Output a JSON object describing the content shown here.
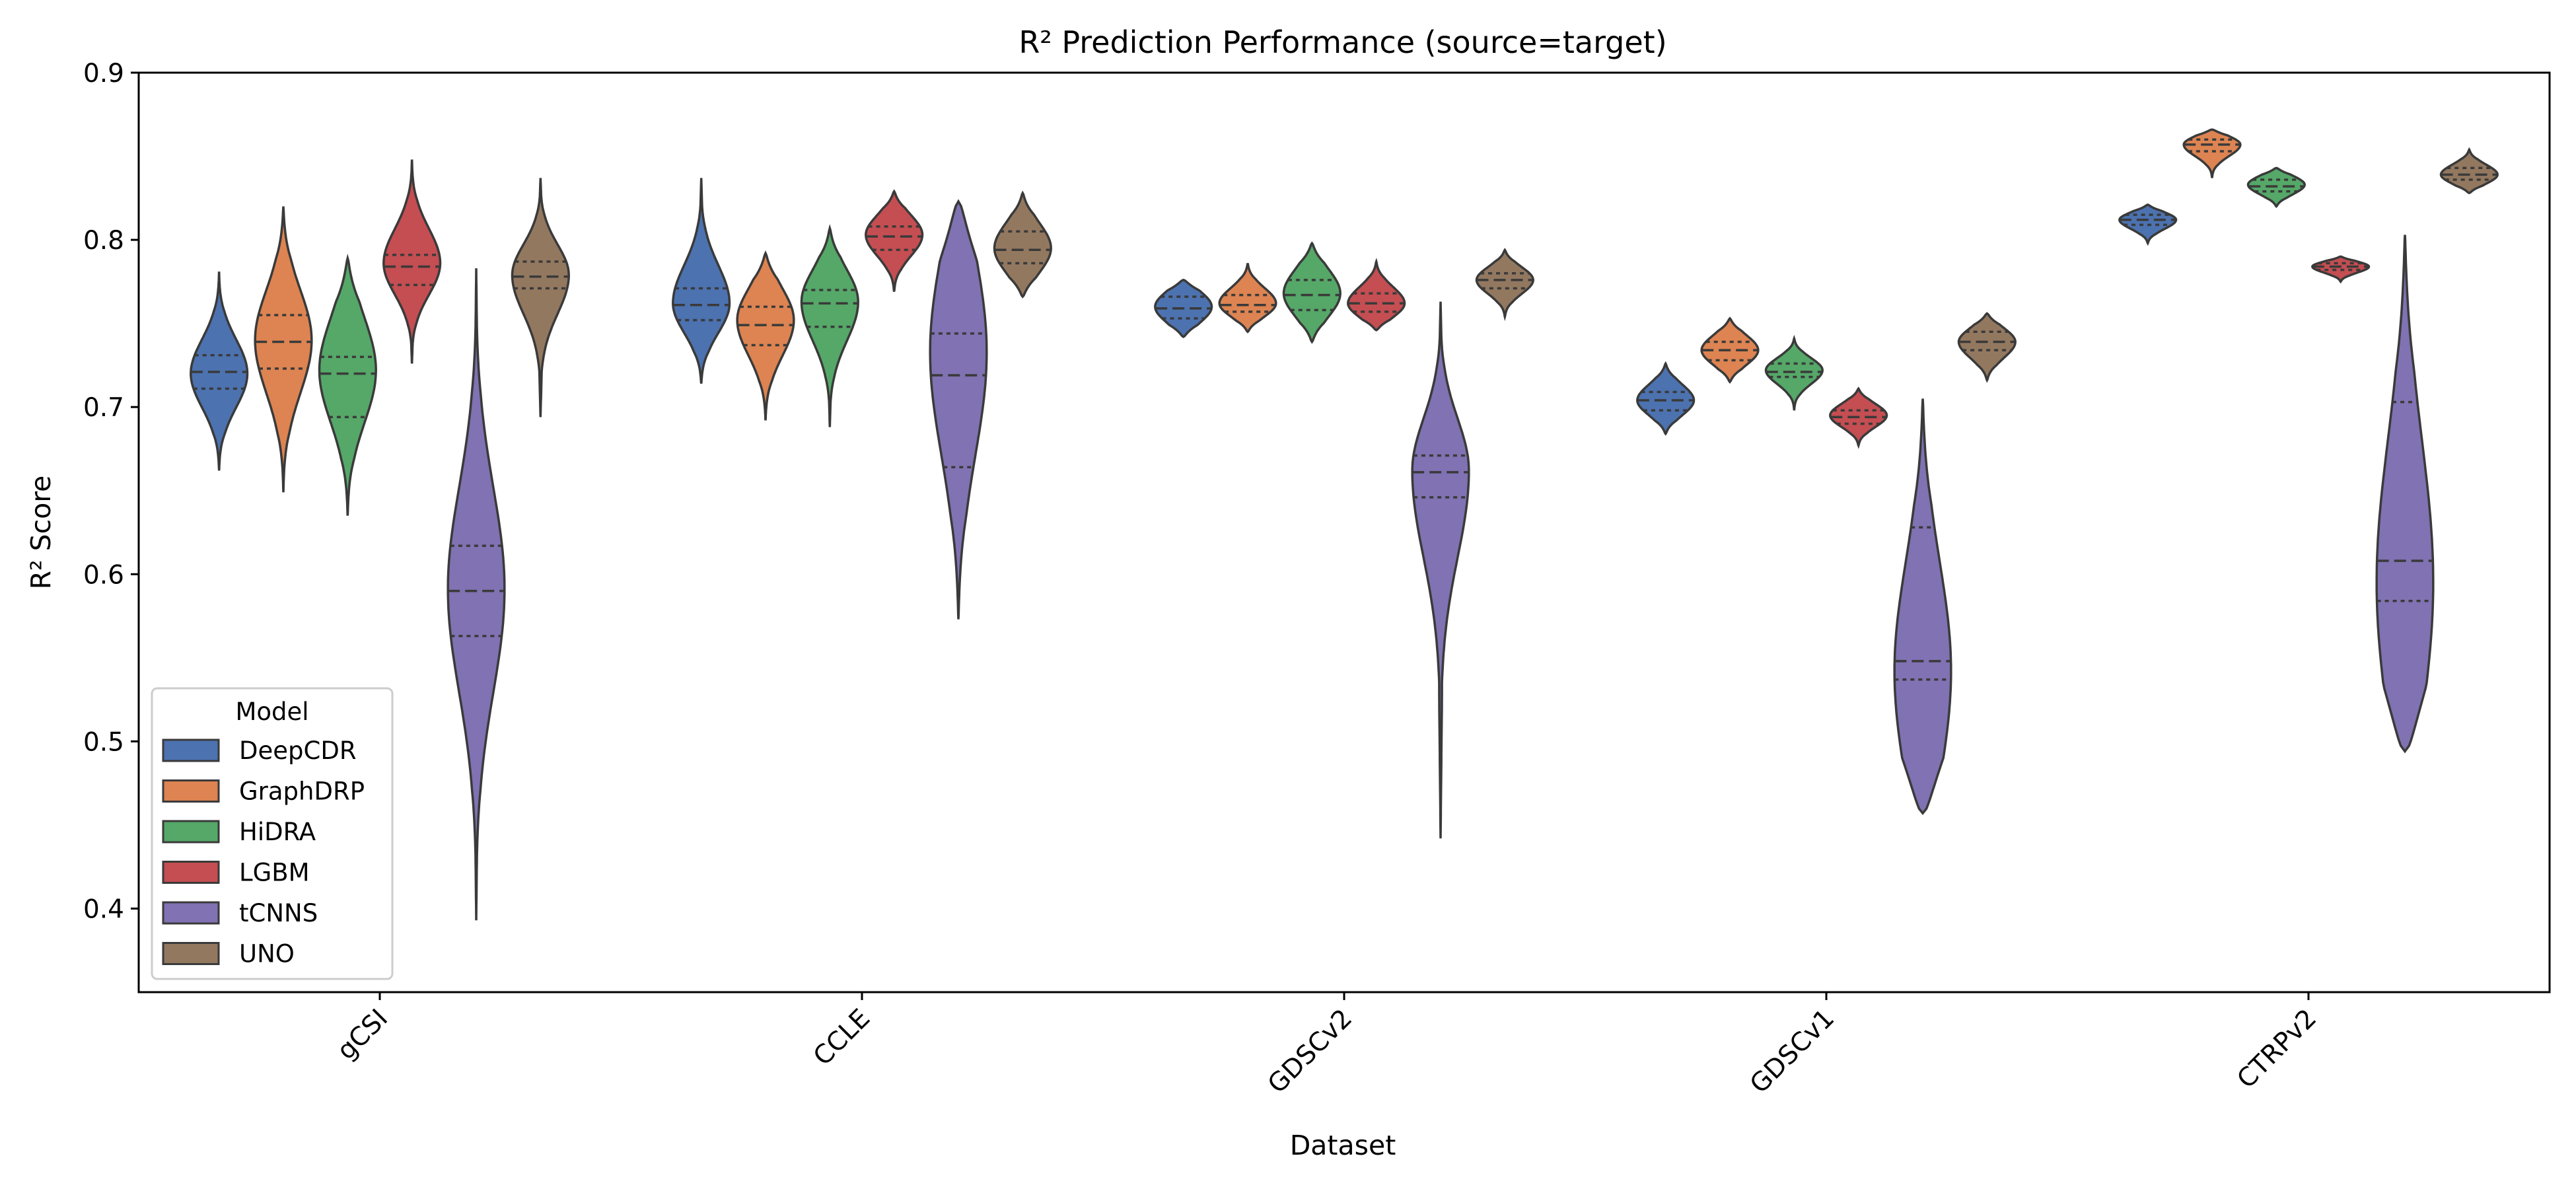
{
  "chart_data": {
    "type": "violin",
    "title": "R² Prediction Performance (source=target)",
    "xlabel": "Dataset",
    "ylabel": "R² Score",
    "ylim": [
      0.35,
      0.9
    ],
    "yticks": [
      "0.4",
      "0.5",
      "0.6",
      "0.7",
      "0.8",
      "0.9"
    ],
    "categories": [
      "gCSI",
      "CCLE",
      "GDSCv2",
      "GDSCv1",
      "CTRPv2"
    ],
    "legend": {
      "title": "Model",
      "position": "lower-left"
    },
    "series": [
      {
        "name": "DeepCDR",
        "color": "#4c72b0",
        "stats": [
          {
            "min": 0.662,
            "q1": 0.711,
            "median": 0.721,
            "q3": 0.731,
            "max": 0.781,
            "mode": 0.72
          },
          {
            "min": 0.714,
            "q1": 0.752,
            "median": 0.761,
            "q3": 0.771,
            "max": 0.837,
            "mode": 0.762
          },
          {
            "min": 0.742,
            "q1": 0.753,
            "median": 0.759,
            "q3": 0.766,
            "max": 0.776,
            "mode": 0.76
          },
          {
            "min": 0.684,
            "q1": 0.698,
            "median": 0.704,
            "q3": 0.709,
            "max": 0.726,
            "mode": 0.704
          },
          {
            "min": 0.798,
            "q1": 0.809,
            "median": 0.812,
            "q3": 0.815,
            "max": 0.821,
            "mode": 0.812
          }
        ]
      },
      {
        "name": "GraphDRP",
        "color": "#dd8452",
        "stats": [
          {
            "min": 0.649,
            "q1": 0.723,
            "median": 0.739,
            "q3": 0.755,
            "max": 0.82,
            "mode": 0.74
          },
          {
            "min": 0.692,
            "q1": 0.737,
            "median": 0.749,
            "q3": 0.76,
            "max": 0.792,
            "mode": 0.752
          },
          {
            "min": 0.745,
            "q1": 0.757,
            "median": 0.761,
            "q3": 0.767,
            "max": 0.786,
            "mode": 0.762
          },
          {
            "min": 0.715,
            "q1": 0.728,
            "median": 0.734,
            "q3": 0.739,
            "max": 0.753,
            "mode": 0.734
          },
          {
            "min": 0.837,
            "q1": 0.853,
            "median": 0.857,
            "q3": 0.86,
            "max": 0.866,
            "mode": 0.857
          }
        ]
      },
      {
        "name": "HiDRA",
        "color": "#55a868",
        "stats": [
          {
            "min": 0.635,
            "q1": 0.694,
            "median": 0.72,
            "q3": 0.73,
            "max": 0.789,
            "mode": 0.722
          },
          {
            "min": 0.688,
            "q1": 0.748,
            "median": 0.762,
            "q3": 0.77,
            "max": 0.807,
            "mode": 0.763
          },
          {
            "min": 0.739,
            "q1": 0.758,
            "median": 0.767,
            "q3": 0.776,
            "max": 0.798,
            "mode": 0.768
          },
          {
            "min": 0.698,
            "q1": 0.718,
            "median": 0.721,
            "q3": 0.726,
            "max": 0.741,
            "mode": 0.722
          },
          {
            "min": 0.82,
            "q1": 0.829,
            "median": 0.832,
            "q3": 0.836,
            "max": 0.843,
            "mode": 0.833
          }
        ]
      },
      {
        "name": "LGBM",
        "color": "#c44e52",
        "stats": [
          {
            "min": 0.726,
            "q1": 0.773,
            "median": 0.784,
            "q3": 0.791,
            "max": 0.848,
            "mode": 0.786
          },
          {
            "min": 0.769,
            "q1": 0.794,
            "median": 0.802,
            "q3": 0.808,
            "max": 0.829,
            "mode": 0.803
          },
          {
            "min": 0.746,
            "q1": 0.757,
            "median": 0.762,
            "q3": 0.768,
            "max": 0.787,
            "mode": 0.762
          },
          {
            "min": 0.677,
            "q1": 0.69,
            "median": 0.694,
            "q3": 0.698,
            "max": 0.711,
            "mode": 0.695
          },
          {
            "min": 0.775,
            "q1": 0.782,
            "median": 0.784,
            "q3": 0.786,
            "max": 0.79,
            "mode": 0.784
          }
        ]
      },
      {
        "name": "tCNNS",
        "color": "#8172b3",
        "stats": [
          {
            "min": 0.393,
            "q1": 0.563,
            "median": 0.59,
            "q3": 0.617,
            "max": 0.783,
            "mode": 0.591
          },
          {
            "min": 0.573,
            "q1": 0.664,
            "median": 0.719,
            "q3": 0.744,
            "max": 0.823,
            "mode": 0.733
          },
          {
            "min": 0.442,
            "q1": 0.646,
            "median": 0.661,
            "q3": 0.671,
            "max": 0.763,
            "mode": 0.662
          },
          {
            "min": 0.457,
            "q1": 0.537,
            "median": 0.548,
            "q3": 0.628,
            "max": 0.705,
            "mode": 0.542
          },
          {
            "min": 0.494,
            "q1": 0.584,
            "median": 0.608,
            "q3": 0.703,
            "max": 0.803,
            "mode": 0.595
          }
        ]
      },
      {
        "name": "UNO",
        "color": "#937860",
        "stats": [
          {
            "min": 0.694,
            "q1": 0.771,
            "median": 0.778,
            "q3": 0.787,
            "max": 0.837,
            "mode": 0.779
          },
          {
            "min": 0.766,
            "q1": 0.786,
            "median": 0.794,
            "q3": 0.805,
            "max": 0.828,
            "mode": 0.795
          },
          {
            "min": 0.754,
            "q1": 0.771,
            "median": 0.776,
            "q3": 0.78,
            "max": 0.794,
            "mode": 0.776
          },
          {
            "min": 0.716,
            "q1": 0.734,
            "median": 0.739,
            "q3": 0.745,
            "max": 0.756,
            "mode": 0.739
          },
          {
            "min": 0.828,
            "q1": 0.836,
            "median": 0.839,
            "q3": 0.843,
            "max": 0.854,
            "mode": 0.839
          }
        ]
      }
    ]
  }
}
